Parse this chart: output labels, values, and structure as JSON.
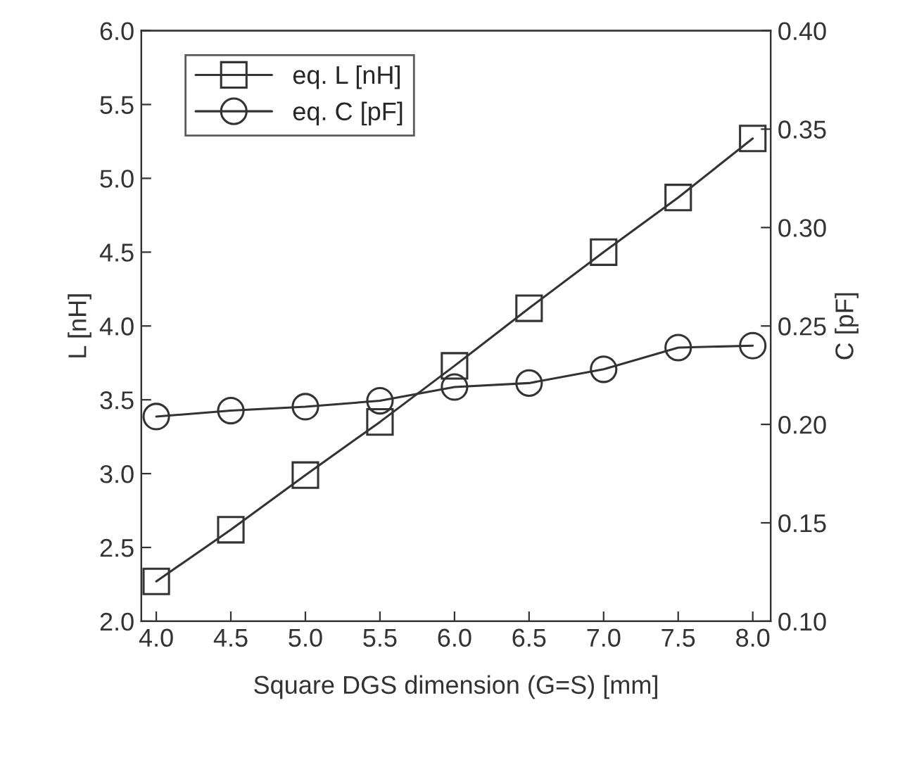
{
  "chart_data": {
    "type": "line",
    "xlabel": "Square DGS dimension (G=S) [mm]",
    "ylabel": "L [nH]",
    "y2label": "C [pF]",
    "x": [
      4.0,
      4.5,
      5.0,
      5.5,
      6.0,
      6.5,
      7.0,
      7.5,
      8.0
    ],
    "series": [
      {
        "name": "eq. L [nH]",
        "color": "#333333",
        "marker": "square",
        "values": [
          2.27,
          2.62,
          2.99,
          3.35,
          3.73,
          4.12,
          4.5,
          4.87,
          5.27
        ]
      },
      {
        "name": "eq. C [pF]",
        "color": "#333333",
        "marker": "circle",
        "axis": "y2",
        "values": [
          0.204,
          0.207,
          0.209,
          0.212,
          0.219,
          0.221,
          0.228,
          0.239,
          0.24
        ]
      }
    ],
    "xlim": [
      3.9,
      8.12
    ],
    "xticks": [
      {
        "value": 4.0,
        "label": "4.0"
      },
      {
        "value": 4.5,
        "label": "4.5"
      },
      {
        "value": 5.0,
        "label": "5.0"
      },
      {
        "value": 5.5,
        "label": "5.5"
      },
      {
        "value": 6.0,
        "label": "6.0"
      },
      {
        "value": 6.5,
        "label": "6.5"
      },
      {
        "value": 7.0,
        "label": "7.0"
      },
      {
        "value": 7.5,
        "label": "7.5"
      },
      {
        "value": 8.0,
        "label": "8.0"
      }
    ],
    "ylim": [
      2.0,
      6.0
    ],
    "yticks": [
      {
        "value": 2.0,
        "label": "2.0"
      },
      {
        "value": 2.5,
        "label": "2.5"
      },
      {
        "value": 3.0,
        "label": "3.0"
      },
      {
        "value": 3.5,
        "label": "3.5"
      },
      {
        "value": 4.0,
        "label": "4.0"
      },
      {
        "value": 4.5,
        "label": "4.5"
      },
      {
        "value": 5.0,
        "label": "5.0"
      },
      {
        "value": 5.5,
        "label": "5.5"
      },
      {
        "value": 6.0,
        "label": "6.0"
      }
    ],
    "y2lim": [
      0.1,
      0.4
    ],
    "y2ticks": [
      {
        "value": 0.1,
        "label": "0.10"
      },
      {
        "value": 0.15,
        "label": "0.15"
      },
      {
        "value": 0.2,
        "label": "0.20"
      },
      {
        "value": 0.25,
        "label": "0.25"
      },
      {
        "value": 0.3,
        "label": "0.30"
      },
      {
        "value": 0.35,
        "label": "0.35"
      },
      {
        "value": 0.4,
        "label": "0.40"
      }
    ],
    "grid": false,
    "legend": "top left",
    "line_style": "solid"
  }
}
